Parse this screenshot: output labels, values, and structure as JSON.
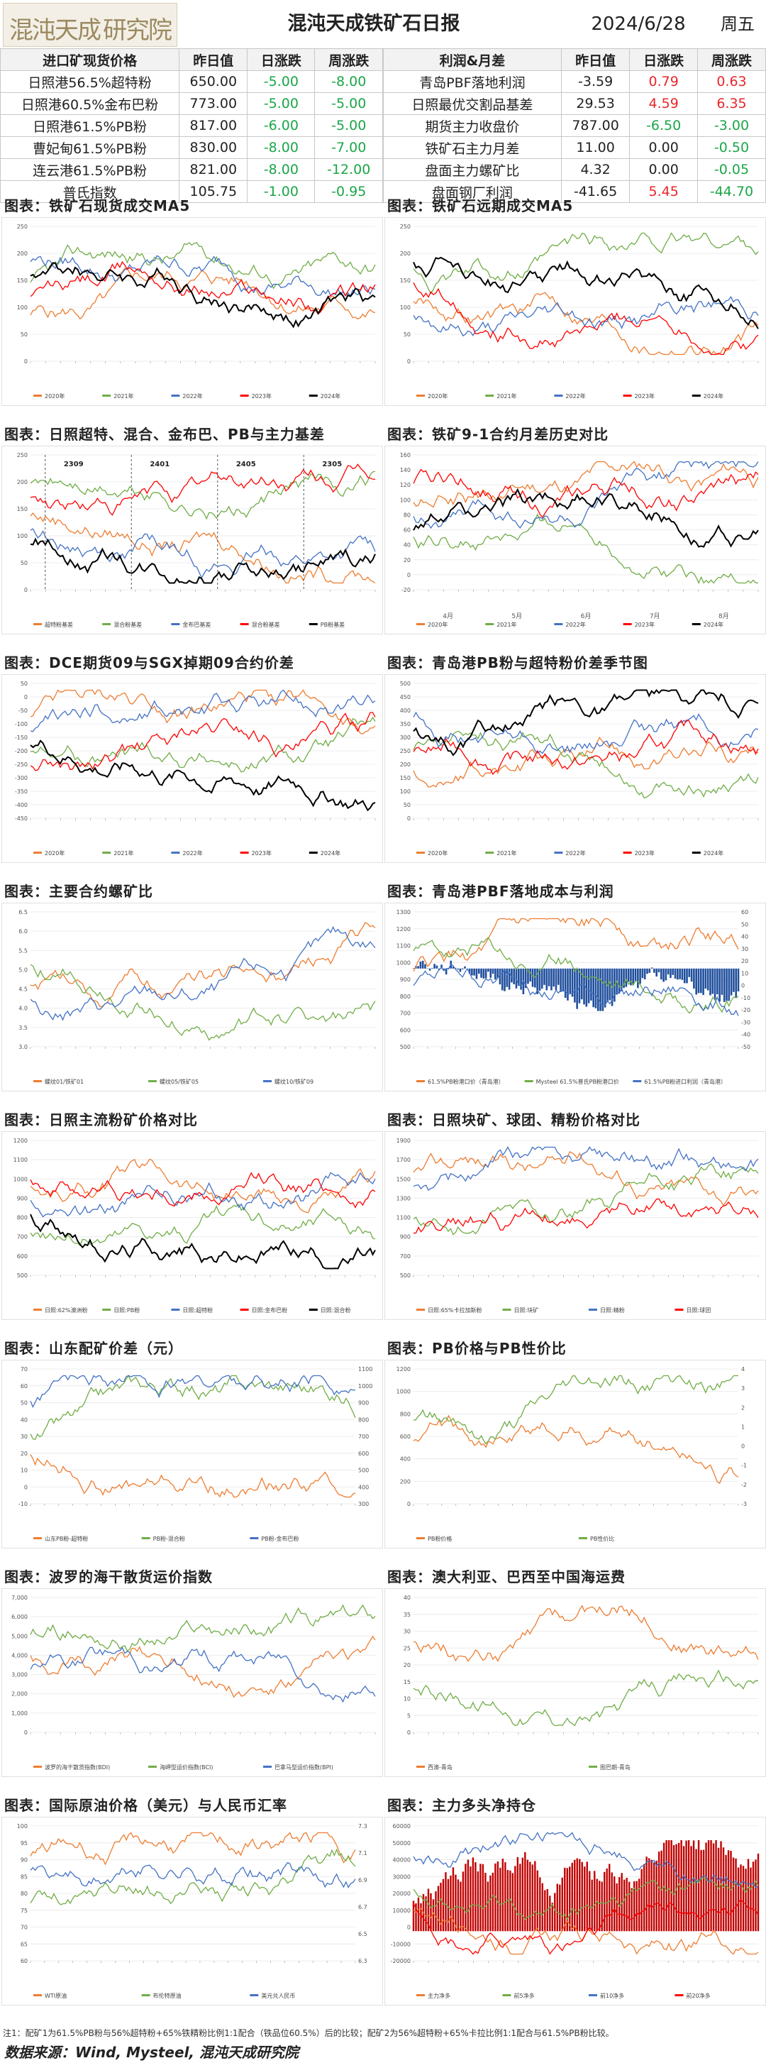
{
  "header": {
    "logo_chars": [
      "混",
      "沌",
      "天",
      "成",
      "研",
      "究",
      "院"
    ],
    "title": "混沌天成铁矿石日报",
    "date": "2024/6/28",
    "weekday": "周五"
  },
  "left_table": {
    "headers": [
      "进口矿现货价格",
      "昨日值",
      "日涨跌",
      "周涨跌"
    ],
    "rows": [
      {
        "name": "日照港56.5%超特粉",
        "prev": "650.00",
        "day": "-5.00",
        "week": "-8.00"
      },
      {
        "name": "日照港60.5%金布巴粉",
        "prev": "773.00",
        "day": "-5.00",
        "week": "-5.00"
      },
      {
        "name": "日照港61.5%PB粉",
        "prev": "817.00",
        "day": "-6.00",
        "week": "-5.00"
      },
      {
        "name": "曹妃甸61.5%PB粉",
        "prev": "830.00",
        "day": "-8.00",
        "week": "-7.00"
      },
      {
        "name": "连云港61.5%PB粉",
        "prev": "821.00",
        "day": "-8.00",
        "week": "-12.00"
      },
      {
        "name": "普氏指数",
        "prev": "105.75",
        "day": "-1.00",
        "week": "-0.95"
      }
    ]
  },
  "right_table": {
    "headers": [
      "利润&月差",
      "昨日值",
      "日涨跌",
      "周涨跌"
    ],
    "rows": [
      {
        "name": "青岛PBF落地利润",
        "prev": "-3.59",
        "day": "0.79",
        "week": "0.63"
      },
      {
        "name": "日照最优交割品基差",
        "prev": "29.53",
        "day": "4.59",
        "week": "6.35"
      },
      {
        "name": "期货主力收盘价",
        "prev": "787.00",
        "day": "-6.50",
        "week": "-3.00"
      },
      {
        "name": "铁矿石主力月差",
        "prev": "11.00",
        "day": "0.00",
        "week": "-0.50"
      },
      {
        "name": "盘面主力螺矿比",
        "prev": "4.32",
        "day": "0.00",
        "week": "-0.05"
      },
      {
        "name": "盘面钢厂利润",
        "prev": "-41.65",
        "day": "5.45",
        "week": "-44.70"
      }
    ]
  },
  "colors": {
    "positive": "#e8262a",
    "negative": "#1aa648",
    "s2020": "#ed7d31",
    "s2021": "#70ad47",
    "s2022": "#4472c4",
    "s2023": "#ff0000",
    "s2024": "#000000",
    "grey": "#a5a5a5",
    "gold": "#ffc000",
    "navy": "#1f4e9c"
  },
  "panels": [
    {
      "title": "图表：铁矿石现货成交MA5",
      "chart_data": {
        "type": "line",
        "y_ticks": [
          "0",
          "50",
          "100",
          "150",
          "200",
          "250"
        ],
        "legend": [
          "2020年",
          "2021年",
          "2022年",
          "2023年",
          "2024年"
        ]
      }
    },
    {
      "title": "图表：铁矿石远期成交MA5",
      "chart_data": {
        "type": "line",
        "y_ticks": [
          "0",
          "50",
          "100",
          "150",
          "200",
          "250"
        ],
        "legend": [
          "2020年",
          "2021年",
          "2022年",
          "2023年",
          "2024年"
        ]
      }
    },
    {
      "title": "图表：日照超特、混合、金布巴、PB与主力基差",
      "chart_data": {
        "type": "line",
        "y_ticks": [
          "0",
          "50",
          "100",
          "150",
          "200",
          "250"
        ],
        "annotations": [
          "2309",
          "2401",
          "2405",
          "2305"
        ],
        "legend": [
          "超特粉基差",
          "混合粉基差",
          "金布巴基差",
          "混合粉基差",
          "PB粉基差"
        ]
      }
    },
    {
      "title": "图表：铁矿9-1合约月差历史对比",
      "chart_data": {
        "type": "line",
        "y_ticks": [
          "-20",
          "0",
          "20",
          "40",
          "60",
          "80",
          "100",
          "120",
          "140",
          "160"
        ],
        "x_ticks": [
          "4月",
          "5月",
          "6月",
          "7月",
          "8月"
        ],
        "legend": [
          "2020年",
          "2021年",
          "2022年",
          "2023年",
          "2024年"
        ]
      }
    },
    {
      "title": "图表：DCE期货09与SGX掉期09合约价差",
      "chart_data": {
        "type": "line",
        "y_ticks": [
          "-450",
          "-400",
          "-350",
          "-300",
          "-250",
          "-200",
          "-150",
          "-100",
          "-50",
          "0",
          "50"
        ],
        "legend": [
          "2020年",
          "2021年",
          "2022年",
          "2023年",
          "2024年"
        ]
      }
    },
    {
      "title": "图表：青岛港PB粉与超特粉价差季节图",
      "chart_data": {
        "type": "line",
        "y_ticks": [
          "0",
          "50",
          "100",
          "150",
          "200",
          "250",
          "300",
          "350",
          "400",
          "450",
          "500"
        ],
        "legend": [
          "2020年",
          "2021年",
          "2022年",
          "2023年",
          "2024年"
        ]
      }
    },
    {
      "title": "图表：主要合约螺矿比",
      "chart_data": {
        "type": "line",
        "y_ticks": [
          "3.0",
          "3.5",
          "4.0",
          "4.5",
          "5.0",
          "5.5",
          "6.0",
          "6.5"
        ],
        "legend": [
          "螺纹01/铁矿01",
          "螺纹05/铁矿05",
          "螺纹10/铁矿09"
        ]
      }
    },
    {
      "title": "图表：青岛港PBF落地成本与利润",
      "chart_data": {
        "type": "area",
        "y_ticks": [
          "500",
          "600",
          "700",
          "800",
          "900",
          "1000",
          "1100",
          "1200",
          "1300"
        ],
        "y2_ticks": [
          "-50",
          "-40",
          "-30",
          "-20",
          "-10",
          "0",
          "10",
          "20",
          "30",
          "40",
          "50",
          "60"
        ],
        "legend": [
          "61.5%PB粉港口价（青岛港）",
          "Mysteel 61.5%普氏PB粉港口价",
          "61.5%PB粉进口利润（青岛港）"
        ]
      }
    },
    {
      "title": "图表：日照主流粉矿价格对比",
      "chart_data": {
        "type": "line",
        "y_ticks": [
          "500",
          "600",
          "700",
          "800",
          "900",
          "1000",
          "1100",
          "1200"
        ],
        "legend": [
          "日照:62%澳洲粉",
          "日照:PB粉",
          "日照:超特粉",
          "日照:金布巴粉",
          "日照:混合粉"
        ]
      }
    },
    {
      "title": "图表：日照块矿、球团、精粉价格对比",
      "chart_data": {
        "type": "line",
        "y_ticks": [
          "500",
          "700",
          "900",
          "1100",
          "1300",
          "1500",
          "1700",
          "1900"
        ],
        "legend": [
          "日照:65%卡拉加斯粉",
          "日照:块矿",
          "日照:精粉",
          "日照:球团"
        ]
      }
    },
    {
      "title": "图表：山东配矿价差（元）",
      "chart_data": {
        "type": "line",
        "y_ticks": [
          "-10",
          "0",
          "10",
          "20",
          "30",
          "40",
          "50",
          "60",
          "70"
        ],
        "y2_ticks": [
          "300",
          "400",
          "500",
          "600",
          "700",
          "800",
          "900",
          "1000",
          "1100"
        ],
        "legend": [
          "山东PB粉-超特粉",
          "PB粉-混合粉",
          "PB粉-金布巴粉"
        ]
      }
    },
    {
      "title": "图表：PB价格与PB性价比",
      "chart_data": {
        "type": "line",
        "y_ticks": [
          "0",
          "200",
          "400",
          "600",
          "800",
          "1000",
          "1200"
        ],
        "y2_ticks": [
          "-3",
          "-2",
          "-1",
          "0",
          "1",
          "2",
          "3",
          "4"
        ],
        "legend": [
          "PB粉价格",
          "PB性价比"
        ]
      }
    },
    {
      "title": "图表：波罗的海干散货运价指数",
      "chart_data": {
        "type": "line",
        "y_ticks": [
          "0",
          "1,000",
          "2,000",
          "3,000",
          "4,000",
          "5,000",
          "6,000",
          "7,000"
        ],
        "legend": [
          "波罗的海干散货指数(BDI)",
          "海岬型运价指数(BCI)",
          "巴拿马型运价指数(BPI)"
        ]
      }
    },
    {
      "title": "图表：澳大利亚、巴西至中国海运费",
      "chart_data": {
        "type": "line",
        "y_ticks": [
          "0",
          "5",
          "10",
          "15",
          "20",
          "25",
          "30",
          "35",
          "40"
        ],
        "legend": [
          "西澳-青岛",
          "图巴朗-青岛"
        ]
      }
    },
    {
      "title": "图表：国际原油价格（美元）与人民币汇率",
      "chart_data": {
        "type": "line",
        "y_ticks": [
          "60",
          "65",
          "70",
          "75",
          "80",
          "85",
          "90",
          "95",
          "100"
        ],
        "y2_ticks": [
          "6.3",
          "6.5",
          "6.7",
          "6.9",
          "7.1",
          "7.3"
        ],
        "legend": [
          "WTI原油",
          "布伦特原油",
          "美元兑人民币"
        ]
      }
    },
    {
      "title": "图表：主力多头净持仓",
      "chart_data": {
        "type": "bar",
        "y_ticks": [
          "-20000",
          "-10000",
          "0",
          "10000",
          "20000",
          "30000",
          "40000",
          "50000",
          "60000"
        ],
        "legend": [
          "主力净多",
          "前5净多",
          "前10净多",
          "前20净多"
        ]
      }
    }
  ],
  "footer": {
    "note": "注1：配矿1为61.5%PB粉与56%超特粉+65%铁精粉比例1:1配合（铁品位60.5%）后的比较；配矿2为56%超特粉+65%卡拉比例1:1配合与61.5%PB粉比较。",
    "source": "数据来源：Wind, Mysteel, 混沌天成研究院"
  }
}
